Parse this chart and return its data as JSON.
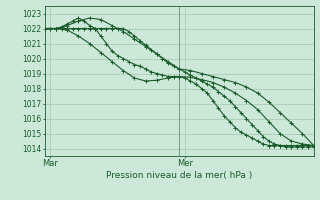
{
  "title": "Pression niveau de la mer( hPa )",
  "bg_color": "#cce8d8",
  "grid_color": "#aaccb8",
  "line_color": "#1a5c2a",
  "ylim": [
    1013.5,
    1023.5
  ],
  "yticks": [
    1014,
    1015,
    1016,
    1017,
    1018,
    1019,
    1020,
    1021,
    1022,
    1023
  ],
  "xlim": [
    0,
    48
  ],
  "vline_x": 24,
  "xlabel_left_x": 1,
  "xlabel_right_x": 25,
  "xlabel_left": "Mar",
  "xlabel_right": "Mer",
  "series1": {
    "x": [
      0,
      1,
      2,
      3,
      4,
      5,
      6,
      7,
      8,
      9,
      10,
      11,
      12,
      13,
      14,
      15,
      16,
      17,
      18,
      19,
      20,
      21,
      22,
      23,
      24,
      25,
      26,
      27,
      28,
      29,
      30,
      31,
      32,
      33,
      34,
      35,
      36,
      37,
      38,
      39,
      40,
      41,
      42,
      43,
      44,
      45,
      46,
      47,
      48
    ],
    "y": [
      1022,
      1022,
      1022,
      1022,
      1022,
      1022,
      1022,
      1022,
      1022,
      1022,
      1022,
      1022,
      1022,
      1022,
      1022,
      1021.8,
      1021.5,
      1021.2,
      1020.9,
      1020.6,
      1020.3,
      1020.0,
      1019.7,
      1019.5,
      1019.3,
      1019.1,
      1018.9,
      1018.7,
      1018.5,
      1018.3,
      1018.1,
      1017.8,
      1017.5,
      1017.2,
      1016.8,
      1016.4,
      1016.0,
      1015.6,
      1015.2,
      1014.8,
      1014.5,
      1014.3,
      1014.2,
      1014.1,
      1014.1,
      1014.1,
      1014.1,
      1014.1,
      1014.1
    ]
  },
  "series2": {
    "x": [
      0,
      1,
      2,
      3,
      4,
      5,
      6,
      7,
      8,
      9,
      10,
      11,
      12,
      13,
      14,
      15,
      16,
      17,
      18,
      19,
      20,
      21,
      22,
      23,
      24,
      25,
      26,
      27,
      28,
      29,
      30,
      31,
      32,
      33,
      34,
      35,
      36,
      37,
      38,
      39,
      40,
      41,
      42,
      43,
      44,
      45,
      46,
      47,
      48
    ],
    "y": [
      1022,
      1022,
      1022,
      1022.1,
      1022.3,
      1022.5,
      1022.7,
      1022.5,
      1022.2,
      1022.0,
      1021.5,
      1021.0,
      1020.5,
      1020.2,
      1020.0,
      1019.8,
      1019.6,
      1019.5,
      1019.3,
      1019.1,
      1019.0,
      1018.9,
      1018.8,
      1018.8,
      1018.8,
      1018.7,
      1018.5,
      1018.3,
      1018.0,
      1017.7,
      1017.2,
      1016.7,
      1016.2,
      1015.8,
      1015.4,
      1015.1,
      1014.9,
      1014.7,
      1014.5,
      1014.3,
      1014.2,
      1014.2,
      1014.2,
      1014.2,
      1014.2,
      1014.2,
      1014.2,
      1014.2,
      1014.2
    ]
  },
  "series3": {
    "x": [
      0,
      2,
      4,
      6,
      8,
      10,
      12,
      14,
      16,
      18,
      20,
      22,
      24,
      26,
      28,
      30,
      32,
      34,
      36,
      38,
      40,
      42,
      44,
      46,
      48
    ],
    "y": [
      1022,
      1022,
      1022.2,
      1022.5,
      1022.7,
      1022.6,
      1022.2,
      1021.8,
      1021.3,
      1020.8,
      1020.3,
      1019.8,
      1019.3,
      1019.2,
      1019.0,
      1018.8,
      1018.6,
      1018.4,
      1018.1,
      1017.7,
      1017.1,
      1016.4,
      1015.7,
      1015.0,
      1014.2
    ]
  },
  "series4": {
    "x": [
      0,
      2,
      4,
      6,
      8,
      10,
      12,
      14,
      16,
      18,
      20,
      22,
      24,
      26,
      28,
      30,
      32,
      34,
      36,
      38,
      40,
      42,
      44,
      46,
      48
    ],
    "y": [
      1022,
      1022,
      1021.9,
      1021.5,
      1021.0,
      1020.4,
      1019.8,
      1019.2,
      1018.7,
      1018.5,
      1018.55,
      1018.7,
      1018.8,
      1018.75,
      1018.6,
      1018.4,
      1018.1,
      1017.7,
      1017.2,
      1016.6,
      1015.8,
      1015.0,
      1014.5,
      1014.3,
      1014.2
    ]
  }
}
